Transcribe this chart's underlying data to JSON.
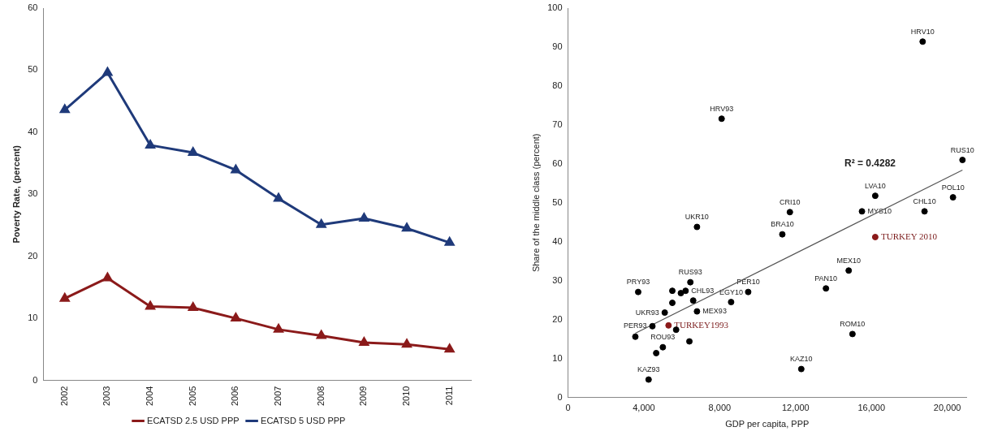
{
  "chart_data": [
    {
      "type": "line",
      "ylabel": "Poverty Rate, (percent)",
      "categories": [
        "2002",
        "2003",
        "2004",
        "2005",
        "2006",
        "2007",
        "2008",
        "2009",
        "2010",
        "2011"
      ],
      "series": [
        {
          "name": "ECATSD 2.5 USD PPP",
          "color": "#8b1a1a",
          "values": [
            13.2,
            16.5,
            11.9,
            11.7,
            10.0,
            8.2,
            7.2,
            6.1,
            5.8,
            5.0
          ]
        },
        {
          "name": "ECATSD 5 USD PPP",
          "color": "#1f3a7a",
          "values": [
            43.6,
            49.6,
            37.9,
            36.7,
            33.9,
            29.3,
            25.1,
            26.1,
            24.5,
            22.2
          ]
        }
      ],
      "ylim": [
        0,
        60
      ],
      "yticks": [
        0,
        10,
        20,
        30,
        40,
        50,
        60
      ],
      "grid": false,
      "legend": "bottom",
      "marker": "triangle",
      "line_style": "solid"
    },
    {
      "type": "scatter",
      "xlabel": "GDP per capita, PPP",
      "ylabel": "Share of the middle class (percent)",
      "series": [
        {
          "type": "scatter",
          "color": "#000000",
          "x": [
            8100,
            18700,
            20800,
            16200,
            20300,
            15500,
            18800,
            11700,
            6800,
            11300,
            16200,
            14800,
            13600,
            15000,
            12300,
            3700,
            3550,
            4450,
            4250,
            4650,
            5000,
            5500,
            5500,
            5100,
            5300,
            5700,
            5950,
            6200,
            6450,
            6600,
            6800,
            6400,
            8600,
            9500
          ],
          "values": [
            71.6,
            91.4,
            61,
            51.8,
            51.4,
            47.8,
            47.8,
            47.6,
            43.8,
            41.9,
            41.2,
            32.6,
            28,
            16.3,
            7.3,
            27.1,
            15.6,
            18.3,
            4.6,
            11.4,
            12.9,
            27.4,
            24.3,
            21.8,
            18.5,
            17.4,
            26.8,
            27.4,
            29.6,
            24.9,
            22.1,
            14.4,
            24.5,
            27.1
          ],
          "colors": [
            "#000000",
            "#000000",
            "#000000",
            "#000000",
            "#000000",
            "#000000",
            "#000000",
            "#000000",
            "#000000",
            "#000000",
            "#8b1a1a",
            "#000000",
            "#000000",
            "#000000",
            "#000000",
            "#000000",
            "#000000",
            "#000000",
            "#000000",
            "#000000",
            "#000000",
            "#000000",
            "#000000",
            "#000000",
            "#8b1a1a",
            "#000000",
            "#000000",
            "#000000",
            "#000000",
            "#000000",
            "#000000",
            "#000000",
            "#000000",
            "#000000"
          ]
        },
        {
          "type": "line",
          "color": "#555555",
          "x": [
            3550,
            20800
          ],
          "values": [
            16.5,
            58.4
          ]
        }
      ],
      "xlim": [
        0,
        21000
      ],
      "xticks": [
        0,
        {
          "value": 4000,
          "label": "4,000"
        },
        {
          "value": 8000,
          "label": "8,000"
        },
        {
          "value": 12000,
          "label": "12,000"
        },
        {
          "value": 16000,
          "label": "16,000"
        },
        {
          "value": 20000,
          "label": "20,000"
        }
      ],
      "ylim": [
        0,
        100
      ],
      "yticks": [
        0,
        10,
        20,
        30,
        40,
        50,
        60,
        70,
        80,
        90,
        100
      ],
      "grid": false,
      "annotations": [
        {
          "text": "HRV93",
          "x": 8100,
          "y": 71.6
        },
        {
          "text": "HRV10",
          "x": 18700,
          "y": 91.4
        },
        {
          "text": "RUS10",
          "x": 20800,
          "y": 61
        },
        "R² = 0.4282",
        {
          "text": "LVA10",
          "x": 16200,
          "y": 51.8
        },
        {
          "text": "POL10",
          "x": 20300,
          "y": 51.4
        },
        {
          "text": "MYS10",
          "x": 15500,
          "y": 47.8
        },
        {
          "text": "CHL10",
          "x": 18800,
          "y": 47.8
        },
        {
          "text": "CRI10",
          "x": 11700,
          "y": 47.6
        },
        {
          "text": "UKR10",
          "x": 6800,
          "y": 43.8
        },
        {
          "text": "BRA10",
          "x": 11300,
          "y": 41.9
        },
        {
          "text": "TURKEY 2010",
          "x": 16200,
          "y": 41.2
        },
        {
          "text": "MEX10",
          "x": 14800,
          "y": 32.6
        },
        {
          "text": "PAN10",
          "x": 13600,
          "y": 28
        },
        {
          "text": "ROM10",
          "x": 15000,
          "y": 16.3
        },
        {
          "text": "KAZ10",
          "x": 12300,
          "y": 7.3
        },
        {
          "text": "PRY93",
          "x": 3700,
          "y": 27.1
        },
        {
          "text": "RUS93",
          "x": 6450,
          "y": 29.6
        },
        {
          "text": "CHL93",
          "x": 6200,
          "y": 27.4
        },
        {
          "text": "PER10",
          "x": 9500,
          "y": 27.1
        },
        {
          "text": "EGY10",
          "x": 8600,
          "y": 24.5
        },
        {
          "text": "UKR93",
          "x": 5100,
          "y": 21.8
        },
        {
          "text": "MEX93",
          "x": 6800,
          "y": 22.1
        },
        {
          "text": "PER93",
          "x": 4450,
          "y": 18.3
        },
        {
          "text": "ROU93",
          "x": 5000,
          "y": 12.9
        },
        {
          "text": "KAZ93",
          "x": 4250,
          "y": 4.6
        },
        {
          "text": "TURKEY1993",
          "x": 5300,
          "y": 18.5
        }
      ]
    }
  ]
}
